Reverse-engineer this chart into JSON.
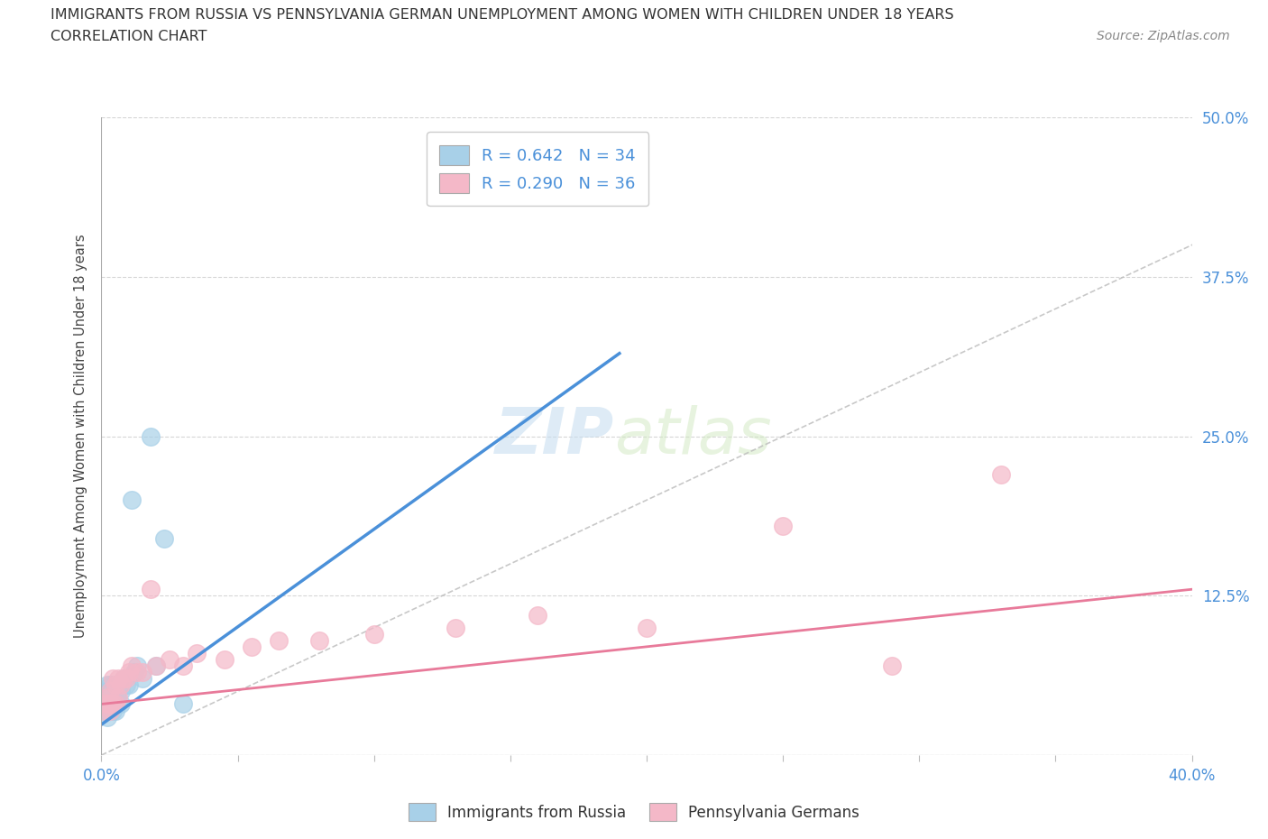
{
  "title_line1": "IMMIGRANTS FROM RUSSIA VS PENNSYLVANIA GERMAN UNEMPLOYMENT AMONG WOMEN WITH CHILDREN UNDER 18 YEARS",
  "title_line2": "CORRELATION CHART",
  "source_text": "Source: ZipAtlas.com",
  "ylabel": "Unemployment Among Women with Children Under 18 years",
  "xlim": [
    0.0,
    0.4
  ],
  "ylim": [
    0.0,
    0.5
  ],
  "ytick_positions": [
    0.0,
    0.125,
    0.25,
    0.375,
    0.5
  ],
  "xtick_positions": [
    0.0,
    0.05,
    0.1,
    0.15,
    0.2,
    0.25,
    0.3,
    0.35,
    0.4
  ],
  "legend_R1": "R = 0.642",
  "legend_N1": "N = 34",
  "legend_R2": "R = 0.290",
  "legend_N2": "N = 36",
  "legend_label1": "Immigrants from Russia",
  "legend_label2": "Pennsylvania Germans",
  "color_blue": "#a8d0e8",
  "color_pink": "#f4b8c8",
  "color_blue_line": "#4a90d9",
  "color_pink_line": "#e87a9a",
  "color_diag": "#bbbbbb",
  "color_text_blue": "#4a90d9",
  "watermark_zip": "ZIP",
  "watermark_atlas": "atlas",
  "russia_x": [
    0.001,
    0.001,
    0.001,
    0.002,
    0.002,
    0.002,
    0.002,
    0.002,
    0.003,
    0.003,
    0.003,
    0.003,
    0.003,
    0.004,
    0.004,
    0.004,
    0.005,
    0.005,
    0.005,
    0.006,
    0.006,
    0.007,
    0.007,
    0.008,
    0.009,
    0.01,
    0.011,
    0.012,
    0.013,
    0.015,
    0.018,
    0.02,
    0.023,
    0.03
  ],
  "russia_y": [
    0.035,
    0.04,
    0.045,
    0.03,
    0.04,
    0.045,
    0.05,
    0.055,
    0.035,
    0.04,
    0.045,
    0.05,
    0.055,
    0.035,
    0.045,
    0.055,
    0.035,
    0.045,
    0.05,
    0.04,
    0.05,
    0.04,
    0.05,
    0.06,
    0.055,
    0.055,
    0.2,
    0.065,
    0.07,
    0.06,
    0.25,
    0.07,
    0.17,
    0.04
  ],
  "pagerman_x": [
    0.001,
    0.001,
    0.002,
    0.002,
    0.003,
    0.003,
    0.003,
    0.004,
    0.004,
    0.005,
    0.005,
    0.006,
    0.006,
    0.007,
    0.008,
    0.009,
    0.01,
    0.011,
    0.013,
    0.015,
    0.018,
    0.02,
    0.025,
    0.03,
    0.035,
    0.045,
    0.055,
    0.065,
    0.08,
    0.1,
    0.13,
    0.16,
    0.2,
    0.25,
    0.29,
    0.33
  ],
  "pagerman_y": [
    0.035,
    0.04,
    0.04,
    0.045,
    0.035,
    0.04,
    0.05,
    0.04,
    0.06,
    0.04,
    0.055,
    0.045,
    0.06,
    0.055,
    0.06,
    0.06,
    0.065,
    0.07,
    0.065,
    0.065,
    0.13,
    0.07,
    0.075,
    0.07,
    0.08,
    0.075,
    0.085,
    0.09,
    0.09,
    0.095,
    0.1,
    0.11,
    0.1,
    0.18,
    0.07,
    0.22
  ],
  "blue_line_x0": 0.0,
  "blue_line_y0": 0.024,
  "blue_line_x1": 0.19,
  "blue_line_y1": 0.315,
  "pink_line_x0": 0.0,
  "pink_line_y0": 0.04,
  "pink_line_x1": 0.4,
  "pink_line_y1": 0.13,
  "background_color": "#ffffff",
  "grid_color": "#cccccc"
}
